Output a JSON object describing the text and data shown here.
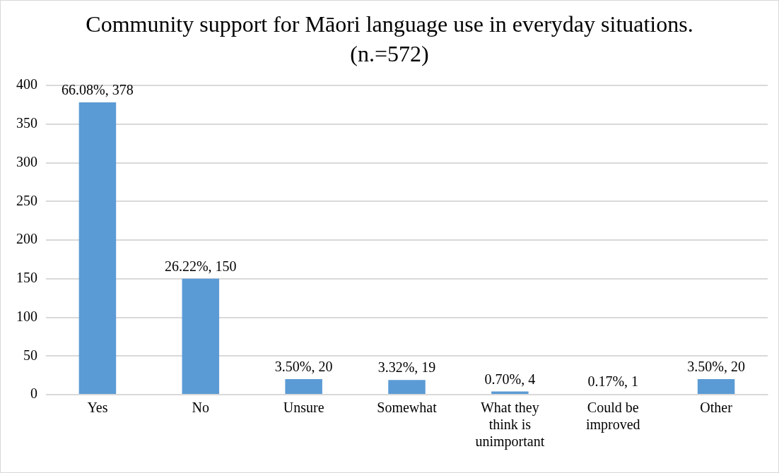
{
  "chart_data": {
    "type": "bar",
    "title": "Community support for Māori language use in everyday situations. (n.=572)",
    "categories": [
      "Yes",
      "No",
      "Unsure",
      "Somewhat",
      "What they think is unimportant",
      "Could be improved",
      "Other"
    ],
    "values": [
      378,
      150,
      20,
      19,
      4,
      1,
      20
    ],
    "value_labels": [
      "66.08%, 378",
      "26.22%, 150",
      "3.50%, 20",
      "3.32%, 19",
      "0.70%, 4",
      "0.17%, 1",
      "3.50%, 20"
    ],
    "color": "#5b9bd5",
    "ylim": [
      0,
      400
    ],
    "yticks": [
      0,
      50,
      100,
      150,
      200,
      250,
      300,
      350,
      400
    ],
    "grid": "y",
    "legend": false
  }
}
